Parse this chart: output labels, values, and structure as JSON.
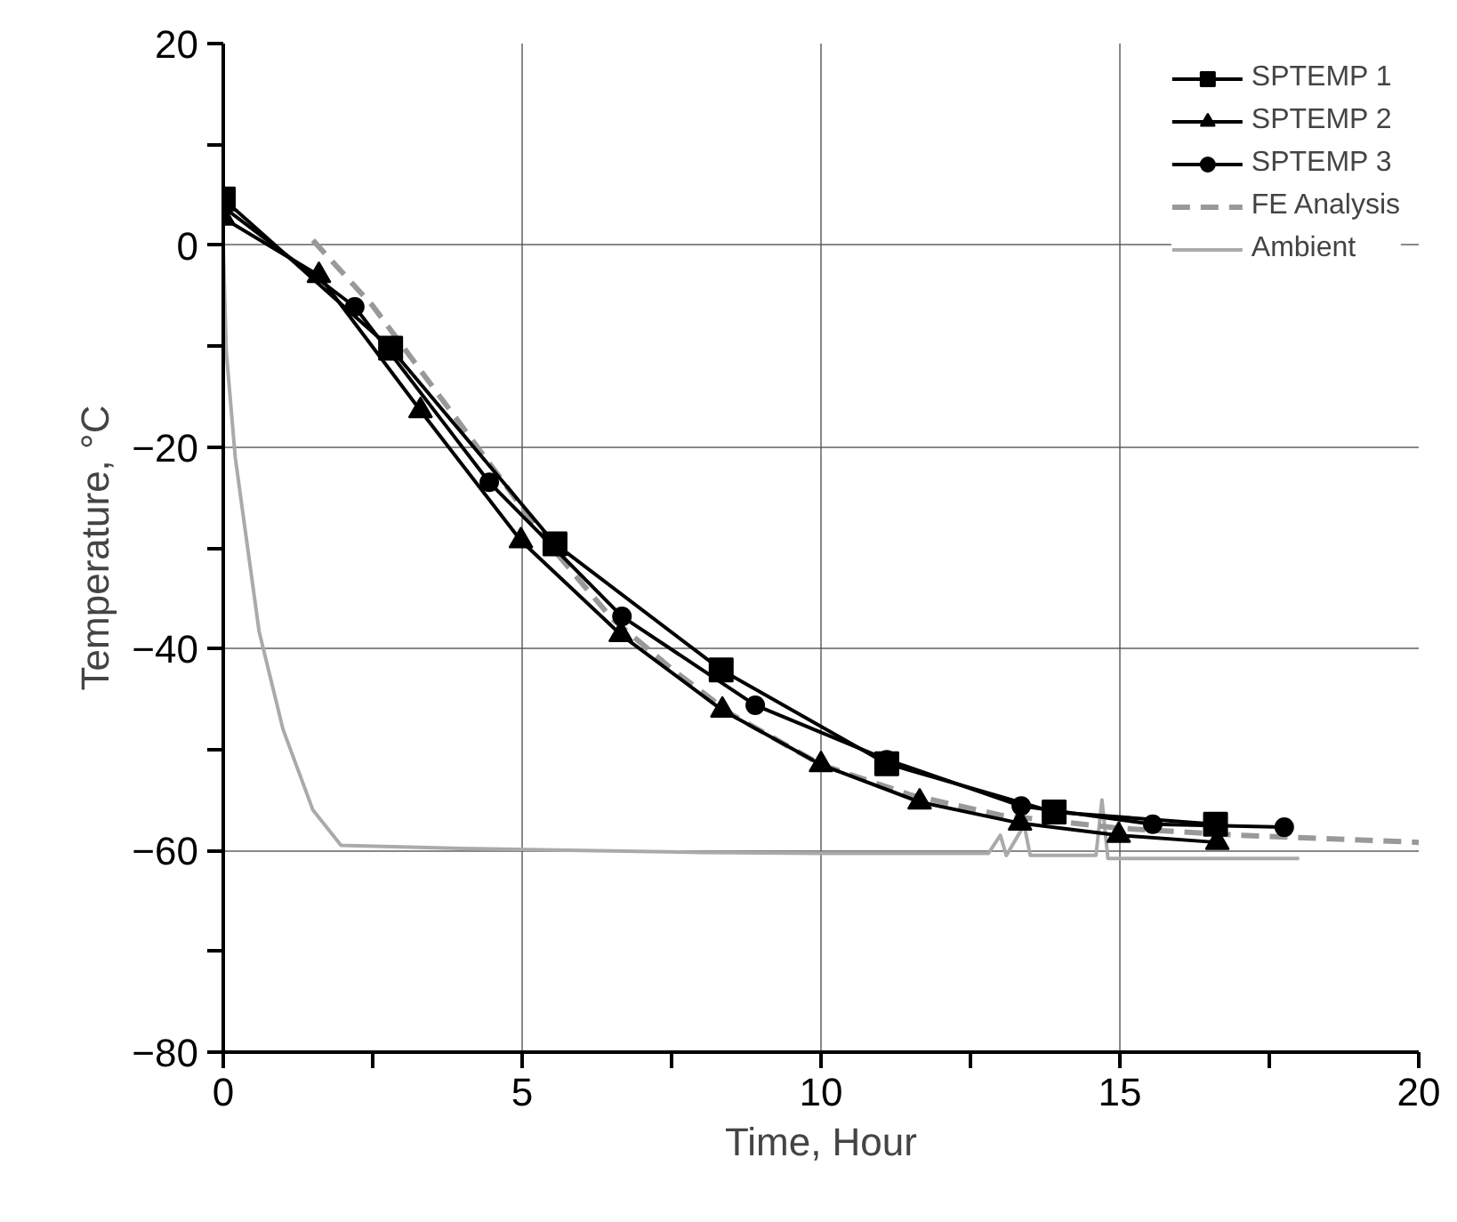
{
  "chart_data": {
    "type": "line",
    "xlabel": "Time, Hour",
    "ylabel": "Temperature, °C",
    "xlim": [
      0,
      20
    ],
    "ylim": [
      -80,
      20
    ],
    "xticks": [
      0,
      {
        "value": 2.5,
        "label": null
      },
      5,
      {
        "value": 7.5,
        "label": null
      },
      10,
      {
        "value": 12.5,
        "label": null
      },
      15,
      {
        "value": 17.5,
        "label": null
      },
      20
    ],
    "yticks": [
      -80,
      {
        "value": -70,
        "label": null
      },
      -60,
      {
        "value": -50,
        "label": null
      },
      -40,
      {
        "value": -30,
        "label": null
      },
      -20,
      {
        "value": -10,
        "label": null
      },
      0,
      {
        "value": 10,
        "label": null
      },
      20
    ],
    "grid": true,
    "legend": "top right",
    "series": [
      {
        "name": "SPTEMP 1",
        "color": "#000000",
        "marker": "square",
        "line_style": "solid",
        "x": [
          0,
          2.8,
          5.55,
          8.33,
          11.1,
          13.9,
          16.6
        ],
        "values": [
          4.6,
          -10.2,
          -29.6,
          -42.1,
          -51.4,
          -56.2,
          -57.4
        ]
      },
      {
        "name": "SPTEMP 2",
        "color": "#000000",
        "marker": "triangle",
        "line_style": "solid",
        "x": [
          0,
          1.6,
          3.3,
          4.98,
          6.65,
          8.35,
          10.0,
          11.65,
          13.33,
          14.98,
          16.63
        ],
        "values": [
          2.7,
          -3.0,
          -16.4,
          -29.3,
          -38.6,
          -46.1,
          -51.5,
          -55.2,
          -57.3,
          -58.5,
          -59.2
        ]
      },
      {
        "name": "SPTEMP 3",
        "color": "#000000",
        "marker": "circle",
        "line_style": "solid",
        "x": [
          0,
          2.2,
          4.45,
          6.67,
          8.9,
          11.1,
          13.35,
          15.55,
          17.75
        ],
        "values": [
          3.8,
          -6.1,
          -23.5,
          -36.8,
          -45.6,
          -51.0,
          -55.6,
          -57.4,
          -57.7
        ]
      },
      {
        "name": "FE Analysis",
        "color": "#999999",
        "marker": "none",
        "line_style": "dashed",
        "x": [
          1.5,
          2.5,
          3.5,
          4.5,
          5.5,
          6.5,
          7.5,
          8.5,
          10,
          11.5,
          13,
          15,
          17,
          20
        ],
        "values": [
          0.5,
          -6,
          -14,
          -22,
          -30,
          -37,
          -42,
          -46.5,
          -51.5,
          -54.5,
          -56.5,
          -57.8,
          -58.5,
          -59.2
        ]
      },
      {
        "name": "Ambient",
        "color": "#aaaaaa",
        "marker": "none",
        "line_style": "solid",
        "x": [
          0,
          0.05,
          0.2,
          0.35,
          0.6,
          1.0,
          1.5,
          1.97,
          4,
          6,
          8,
          10,
          12.8,
          13.0,
          13.1,
          13.4,
          13.5,
          14.6,
          14.7,
          14.8,
          16,
          18
        ],
        "values": [
          0,
          -10.5,
          -21,
          -27.5,
          -38.3,
          -48,
          -56,
          -59.5,
          -59.8,
          -60,
          -60.2,
          -60.3,
          -60.3,
          -58.5,
          -60.5,
          -57.5,
          -60.5,
          -60.5,
          -55,
          -60.8,
          -60.8,
          -60.8
        ]
      }
    ]
  }
}
